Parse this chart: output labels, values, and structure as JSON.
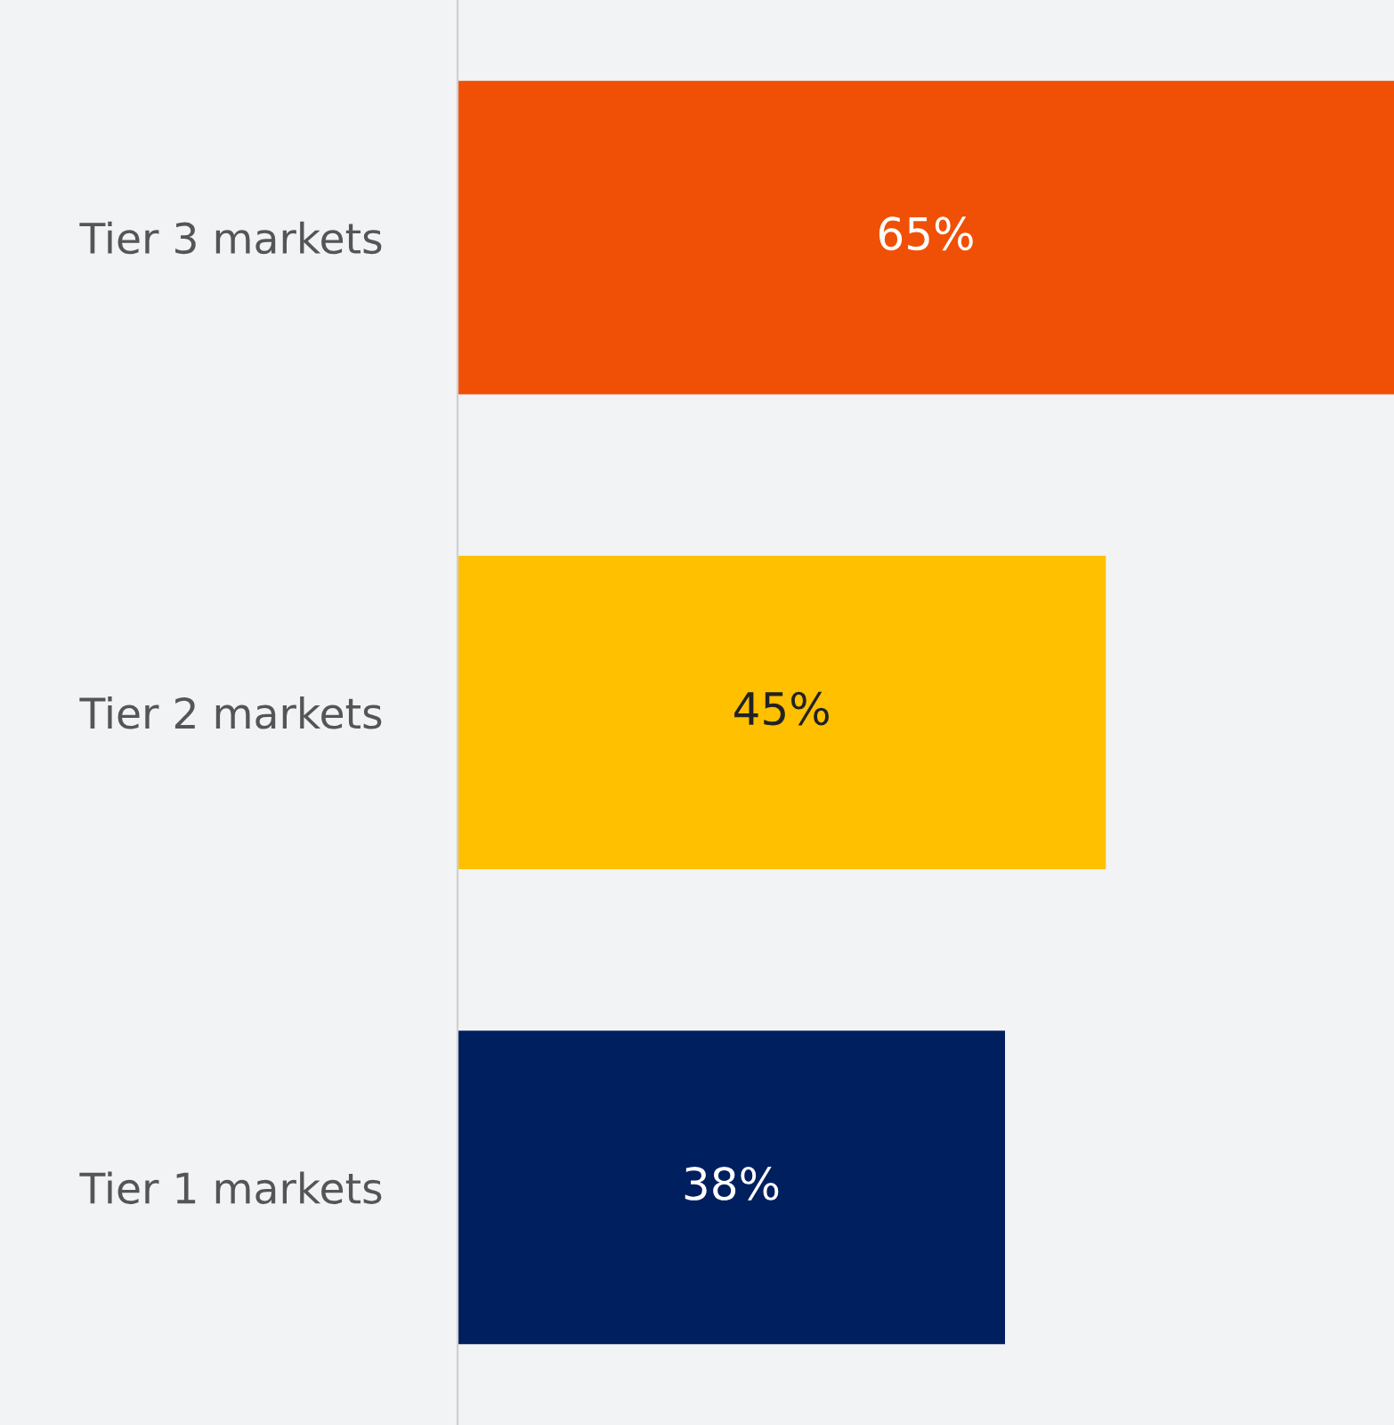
{
  "chart_data": {
    "type": "bar",
    "orientation": "horizontal",
    "categories": [
      "Tier 3 markets",
      "Tier 2 markets",
      "Tier 1 markets"
    ],
    "values": [
      65,
      45,
      38
    ],
    "value_labels": [
      "65%",
      "45%",
      "38%"
    ],
    "colors": [
      "#f05006",
      "#ffc000",
      "#001f5f"
    ],
    "xlim": [
      0,
      65
    ],
    "tick_labels": "y",
    "grid": false,
    "legend": false
  }
}
